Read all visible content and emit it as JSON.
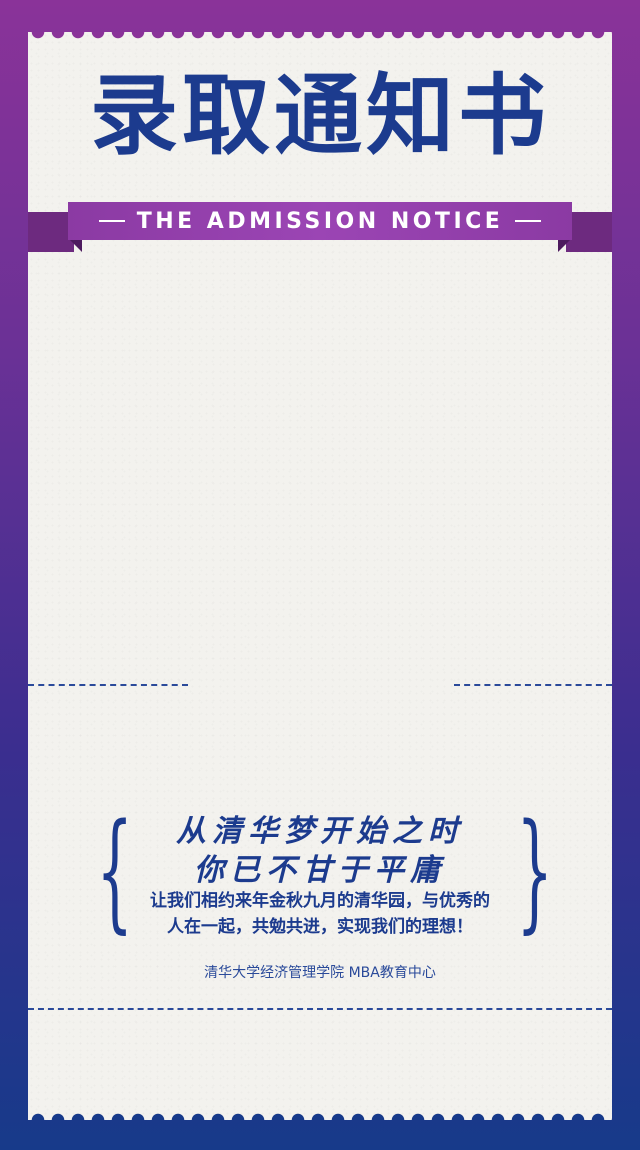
{
  "title": "录取通知书",
  "ribbon": {
    "text": "THE ADMISSION NOTICE"
  },
  "slogan": {
    "line1": "从清华梦开始之时",
    "line2": "你已不甘于平庸"
  },
  "body": {
    "line1": "让我们相约来年金秋九月的清华园，与优秀的",
    "line2": "人在一起，共勉共进，实现我们的理想！"
  },
  "footer": {
    "text": "清华大学经济管理学院  MBA教育中心"
  },
  "colors": {
    "title_blue": "#1c3b8e",
    "ribbon_purple": "#8b3aa3",
    "background_top": "#8a3399",
    "background_bottom": "#173a8a",
    "paper": "#f3f2ee"
  }
}
